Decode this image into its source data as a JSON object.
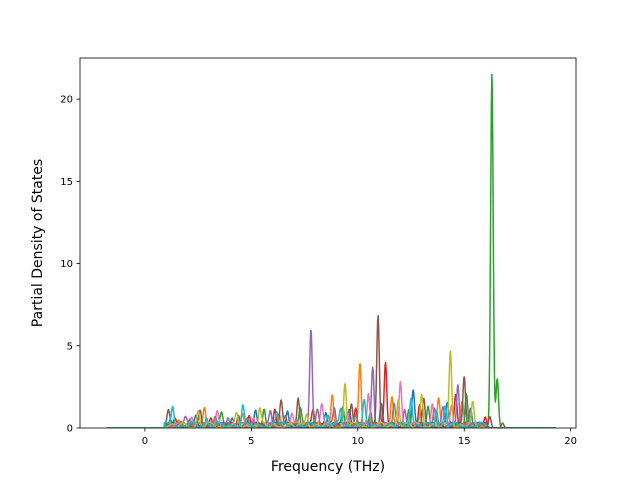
{
  "chart_data": {
    "type": "line",
    "title": "",
    "xlabel": "Frequency (THz)",
    "ylabel": "Partial Density of States",
    "xlim": [
      -3.05,
      20.25
    ],
    "ylim": [
      0,
      22.5
    ],
    "x_ticks": [
      0,
      5,
      10,
      15,
      20
    ],
    "y_ticks": [
      0,
      5,
      10,
      15,
      20
    ],
    "grid": false,
    "legend": "none",
    "x_range_of_curves": [
      -1.8,
      19.3
    ],
    "series": [
      {
        "color": "#1f77b4",
        "peaks": [
          [
            1.2,
            0.5
          ],
          [
            2.4,
            0.7
          ],
          [
            4.1,
            0.6
          ],
          [
            5.2,
            0.9
          ],
          [
            6.7,
            1.0
          ],
          [
            8.5,
            0.8
          ],
          [
            9.6,
            1.1
          ],
          [
            11.1,
            1.5
          ],
          [
            12.6,
            2.1
          ],
          [
            14.2,
            1.5
          ],
          [
            15.3,
            1.1
          ]
        ]
      },
      {
        "color": "#ff7f0e",
        "peaks": [
          [
            1.6,
            0.4
          ],
          [
            2.8,
            1.1
          ],
          [
            4.6,
            0.8
          ],
          [
            6.3,
            0.7
          ],
          [
            8.8,
            2.0
          ],
          [
            10.1,
            3.9
          ],
          [
            11.6,
            1.9
          ],
          [
            13.8,
            1.6
          ],
          [
            14.9,
            1.3
          ]
        ]
      },
      {
        "color": "#2ca02c",
        "peaks": [
          [
            2.1,
            0.5
          ],
          [
            3.6,
            0.7
          ],
          [
            5.6,
            1.0
          ],
          [
            7.3,
            0.9
          ],
          [
            9.3,
            1.2
          ],
          [
            10.6,
            0.9
          ],
          [
            12.4,
            1.0
          ],
          [
            13.3,
            1.2
          ],
          [
            15.1,
            2.0
          ],
          [
            16.3,
            21.5
          ],
          [
            16.55,
            3.0
          ]
        ]
      },
      {
        "color": "#d62728",
        "peaks": [
          [
            1.4,
            0.4
          ],
          [
            3.1,
            0.6
          ],
          [
            4.9,
            0.7
          ],
          [
            6.1,
            1.1
          ],
          [
            7.9,
            0.9
          ],
          [
            9.9,
            1.2
          ],
          [
            11.3,
            3.9
          ],
          [
            12.9,
            1.4
          ],
          [
            14.6,
            1.8
          ],
          [
            16.0,
            0.6
          ]
        ]
      },
      {
        "color": "#9467bd",
        "peaks": [
          [
            1.9,
            0.4
          ],
          [
            3.9,
            0.6
          ],
          [
            5.9,
            0.9
          ],
          [
            7.8,
            6.0
          ],
          [
            8.9,
            1.0
          ],
          [
            10.7,
            3.7
          ],
          [
            12.2,
            1.1
          ],
          [
            14.0,
            1.3
          ],
          [
            14.7,
            2.6
          ]
        ]
      },
      {
        "color": "#8c564b",
        "peaks": [
          [
            1.1,
            0.8
          ],
          [
            2.6,
            0.9
          ],
          [
            4.4,
            0.7
          ],
          [
            6.4,
            1.7
          ],
          [
            7.2,
            1.8
          ],
          [
            9.7,
            1.3
          ],
          [
            10.95,
            6.6
          ],
          [
            13.1,
            1.7
          ],
          [
            15.0,
            3.1
          ],
          [
            16.2,
            0.7
          ],
          [
            16.8,
            0.3
          ]
        ]
      },
      {
        "color": "#e377c2",
        "peaks": [
          [
            2.2,
            0.5
          ],
          [
            3.4,
            0.8
          ],
          [
            5.1,
            0.6
          ],
          [
            6.9,
            0.8
          ],
          [
            8.3,
            1.2
          ],
          [
            9.5,
            0.8
          ],
          [
            10.5,
            2.1
          ],
          [
            12.0,
            2.8
          ],
          [
            13.5,
            1.4
          ],
          [
            14.4,
            1.2
          ]
        ]
      },
      {
        "color": "#7f7f7f",
        "peaks": [
          [
            1.7,
            0.4
          ],
          [
            3.3,
            0.5
          ],
          [
            4.8,
            0.6
          ],
          [
            6.6,
            0.7
          ],
          [
            8.1,
            0.9
          ],
          [
            9.9,
            0.8
          ],
          [
            11.7,
            1.3
          ],
          [
            13.6,
            1.0
          ],
          [
            15.2,
            0.9
          ]
        ]
      },
      {
        "color": "#bcbd22",
        "peaks": [
          [
            2.5,
            0.9
          ],
          [
            4.3,
            0.6
          ],
          [
            5.4,
            1.0
          ],
          [
            7.6,
            0.8
          ],
          [
            9.4,
            2.6
          ],
          [
            11.9,
            1.7
          ],
          [
            13.0,
            1.9
          ],
          [
            14.35,
            4.6
          ],
          [
            15.4,
            1.3
          ]
        ]
      },
      {
        "color": "#17becf",
        "peaks": [
          [
            1.3,
            1.3
          ],
          [
            2.9,
            0.6
          ],
          [
            4.6,
            1.2
          ],
          [
            6.2,
            0.9
          ],
          [
            8.6,
            0.7
          ],
          [
            9.2,
            1.0
          ],
          [
            10.3,
            1.4
          ],
          [
            12.5,
            1.8
          ],
          [
            13.7,
            1.0
          ],
          [
            14.1,
            1.2
          ]
        ]
      }
    ]
  }
}
